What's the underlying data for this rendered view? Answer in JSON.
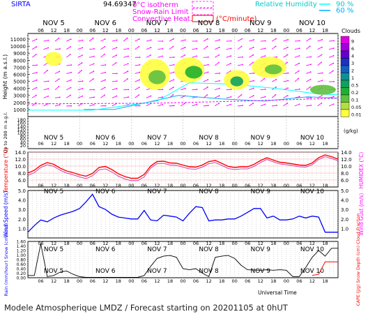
{
  "header": {
    "station": "SIRTA",
    "coords": "94.69347",
    "legend_isotherm": "0°C isotherm",
    "legend_snow_rain": "Snow-Rain Limit",
    "legend_convective": "Convective Heat.",
    "legend_convective_unit": "(°C/minute)",
    "legend_rh": "Relative Humidity",
    "rh_90": "90 %",
    "rh_60": "60 %"
  },
  "footer": "Modele Atmospherique LMDZ / Forecast starting on 20201105 at 0hUT",
  "colors": {
    "temperature": "#ff0000",
    "humidex": "#cc44aa",
    "wind": "#0000ff",
    "label_red": "#ff0000",
    "label_blue": "#0000ff",
    "label_magenta": "#ff00ff",
    "rh90": "#00ffff",
    "rh60": "#00aaff",
    "isotherm": "#ff00ff"
  },
  "chart_data": [
    {
      "type": "area",
      "name": "clouds-height",
      "days": [
        "NOV 5",
        "NOV 6",
        "NOV 7",
        "NOV 8",
        "NOV 9",
        "NOV 10"
      ],
      "hours": [
        "06",
        "12",
        "18",
        "00"
      ],
      "ylabel": "Height (m a.s.l.)",
      "ylabel2": "Up to 200 m a.g.l.",
      "upper_yticks": [
        1000,
        2000,
        3000,
        4000,
        5000,
        6000,
        7000,
        8000,
        9000,
        10000,
        11000
      ],
      "lower_yticks": [
        20,
        40,
        60,
        80,
        100,
        120,
        140,
        160,
        180
      ],
      "colorbar_title": "Clouds",
      "colorbar_unit": "(g/kg)",
      "colorbar_ticks": [
        "9",
        "6",
        "4",
        "3",
        "2",
        "1",
        "0.5",
        "0.2",
        "0.1",
        "0.05",
        "0.01"
      ],
      "colorbar_colors": [
        "#e000e0",
        "#a000e0",
        "#6000d0",
        "#2030c0",
        "#1060c0",
        "#109090",
        "#10a060",
        "#20b030",
        "#60c040",
        "#b0e040",
        "#ffff40"
      ]
    },
    {
      "type": "line",
      "name": "temperature",
      "ylabel": "Temperature (°C)",
      "ylabel_right": "HUMIDEX (°C)",
      "yticks": [
        "14.0",
        "12.0",
        "10.0",
        "8.0",
        "6.0"
      ],
      "ylim": [
        4,
        14
      ],
      "series": [
        {
          "name": "Temperature",
          "x": [
            0,
            3,
            6,
            9,
            12,
            15,
            18,
            21,
            24,
            27,
            30,
            33,
            36,
            39,
            42,
            45,
            48,
            51,
            54,
            57,
            60,
            63,
            66,
            69,
            72,
            75,
            78,
            81,
            84,
            87,
            90,
            93,
            96,
            99,
            102,
            105,
            108,
            111,
            114,
            117,
            120,
            123,
            126,
            129,
            132,
            135,
            138,
            141,
            144
          ],
          "values": [
            8.0,
            8.8,
            10.2,
            11.0,
            10.5,
            9.4,
            8.6,
            8.1,
            7.5,
            7.1,
            7.9,
            9.6,
            9.9,
            9.0,
            7.8,
            7.0,
            6.5,
            6.5,
            7.6,
            10.0,
            11.3,
            11.4,
            10.9,
            10.8,
            10.3,
            9.8,
            9.7,
            10.3,
            11.3,
            11.6,
            10.8,
            9.9,
            9.6,
            9.8,
            9.8,
            10.5,
            11.6,
            12.4,
            11.7,
            11.1,
            10.9,
            10.6,
            10.3,
            10.2,
            10.9,
            12.4,
            13.2,
            12.7,
            12.0
          ]
        },
        {
          "name": "Humidex",
          "x": [
            0,
            3,
            6,
            9,
            12,
            15,
            18,
            21,
            24,
            27,
            30,
            33,
            36,
            39,
            42,
            45,
            48,
            51,
            54,
            57,
            60,
            63,
            66,
            69,
            72,
            75,
            78,
            81,
            84,
            87,
            90,
            93,
            96,
            99,
            102,
            105,
            108,
            111,
            114,
            117,
            120,
            123,
            126,
            129,
            132,
            135,
            138,
            141,
            144
          ],
          "values": [
            7.3,
            8.1,
            9.6,
            10.4,
            9.9,
            8.8,
            8.0,
            7.5,
            6.9,
            6.4,
            7.2,
            8.9,
            9.2,
            8.3,
            7.1,
            6.3,
            5.8,
            5.8,
            6.9,
            9.4,
            10.7,
            10.8,
            10.3,
            10.2,
            9.7,
            9.2,
            9.1,
            9.7,
            10.7,
            11.0,
            10.2,
            9.3,
            9.0,
            9.2,
            9.2,
            9.9,
            11.0,
            11.9,
            11.2,
            10.6,
            10.4,
            10.1,
            9.8,
            9.7,
            10.4,
            11.9,
            12.7,
            12.2,
            11.5
          ]
        }
      ]
    },
    {
      "type": "line",
      "name": "wind",
      "ylabel": "Wind Speed (m/s)",
      "ylabel_right": "Wind Gust (m/s)",
      "yticks": [
        "5.0",
        "4.0",
        "3.0",
        "2.0",
        "1.0"
      ],
      "ylim": [
        0,
        5
      ],
      "series": [
        {
          "name": "Wind Speed",
          "x": [
            0,
            3,
            6,
            9,
            12,
            15,
            18,
            21,
            24,
            27,
            30,
            33,
            36,
            39,
            42,
            45,
            48,
            51,
            54,
            57,
            60,
            63,
            66,
            69,
            72,
            75,
            78,
            81,
            84,
            87,
            90,
            93,
            96,
            99,
            102,
            105,
            108,
            111,
            114,
            117,
            120,
            123,
            126,
            129,
            132,
            135,
            138,
            141,
            144
          ],
          "values": [
            0.6,
            1.3,
            1.9,
            1.7,
            2.1,
            2.4,
            2.6,
            2.8,
            3.1,
            3.8,
            4.6,
            3.3,
            3.0,
            2.5,
            2.2,
            2.1,
            2.0,
            2.0,
            2.9,
            1.9,
            1.8,
            2.4,
            2.3,
            2.2,
            1.8,
            2.6,
            3.3,
            3.2,
            1.8,
            1.9,
            1.9,
            2.0,
            2.0,
            2.3,
            2.7,
            3.1,
            3.1,
            2.1,
            2.3,
            1.9,
            1.9,
            2.0,
            2.3,
            2.1,
            2.3,
            2.2,
            0.6,
            0.6,
            0.6
          ]
        }
      ]
    },
    {
      "type": "line",
      "name": "precipitation",
      "ylabel": "Rain (mm/hour) Snow (cm/hour)",
      "ylabel_right": "CAPE (J/g) Snow Depth (cm) Cloud Fraction",
      "yticks": [
        "1.60",
        "1.40",
        "1.20",
        "1.00",
        "0.80",
        "0.60",
        "0.40",
        "0.20",
        "0.00"
      ],
      "ylim": [
        0,
        1.6
      ],
      "xlabel": "Universal Time",
      "series": [
        {
          "name": "Cloud Fraction",
          "x": [
            0,
            3,
            6,
            9,
            12,
            15,
            18,
            21,
            24,
            27,
            30,
            33,
            36,
            39,
            42,
            45,
            48,
            51,
            54,
            57,
            60,
            63,
            66,
            69,
            72,
            75,
            78,
            81,
            84,
            87,
            90,
            93,
            96,
            99,
            102,
            105,
            108,
            111,
            114,
            117,
            120,
            123,
            126,
            129,
            132,
            135,
            138,
            141,
            144
          ],
          "values": [
            0.1,
            0.1,
            1.5,
            0.05,
            0.1,
            0.25,
            0.3,
            0.15,
            0.05,
            0.02,
            0.02,
            0.02,
            0.02,
            0.02,
            0.02,
            0.02,
            0.02,
            0.02,
            0.1,
            0.5,
            0.85,
            0.95,
            0.98,
            0.9,
            0.4,
            0.35,
            0.4,
            0.2,
            0.05,
            0.9,
            0.95,
            0.98,
            0.85,
            0.55,
            0.35,
            0.34,
            0.33,
            0.35,
            0.33,
            0.35,
            0.33,
            0.05,
            0.05,
            0.45,
            0.9,
            1.2,
            0.95,
            1.3,
            1.3
          ]
        },
        {
          "name": "CAPE",
          "x": [
            132,
            135,
            138,
            141,
            144
          ],
          "values": [
            0.1,
            0.15,
            0.7,
            0.7,
            0.7
          ]
        }
      ]
    }
  ]
}
